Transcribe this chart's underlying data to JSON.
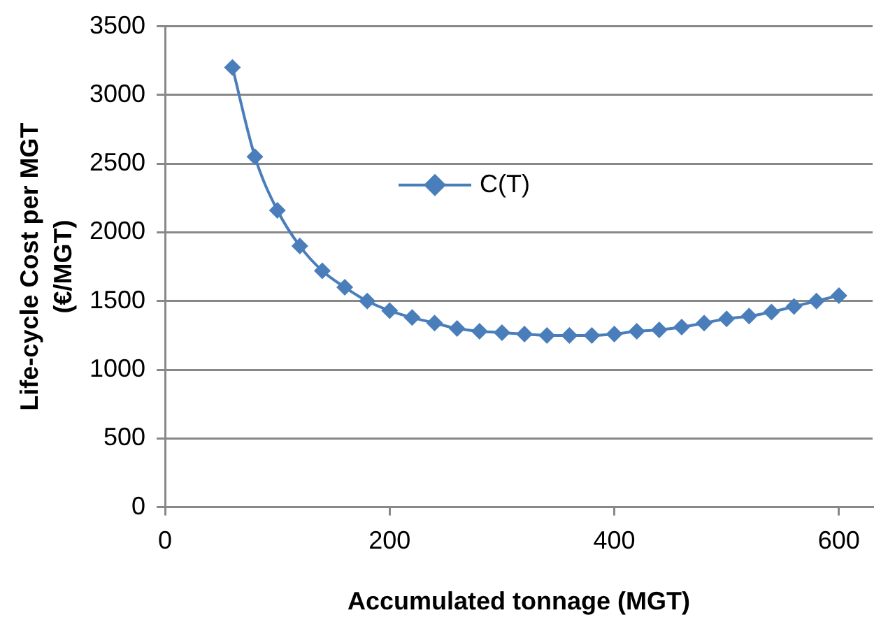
{
  "chart_data": {
    "type": "line",
    "xlabel": "Accumulated tonnage (MGT)",
    "ylabel": "Life-cycle Cost per MGT (€/MGT)",
    "x": [
      60,
      80,
      100,
      120,
      140,
      160,
      180,
      200,
      220,
      240,
      260,
      280,
      300,
      320,
      340,
      360,
      380,
      400,
      420,
      440,
      460,
      480,
      500,
      520,
      540,
      560,
      580,
      600
    ],
    "series": [
      {
        "name": "C(T)",
        "color": "#4a7ebb",
        "values": [
          3200,
          2550,
          2160,
          1900,
          1720,
          1600,
          1500,
          1430,
          1380,
          1340,
          1300,
          1280,
          1270,
          1260,
          1250,
          1250,
          1250,
          1260,
          1280,
          1290,
          1310,
          1340,
          1370,
          1390,
          1420,
          1460,
          1500,
          1540
        ]
      }
    ],
    "xlim": [
      0,
      630
    ],
    "xticks": [
      0,
      200,
      400,
      600
    ],
    "ylim": [
      0,
      3500
    ],
    "yticks": [
      0,
      500,
      1000,
      1500,
      2000,
      2500,
      3000,
      3500
    ],
    "grid": "y",
    "legend": "top left",
    "marker": "diamond",
    "line_style": "solid"
  }
}
